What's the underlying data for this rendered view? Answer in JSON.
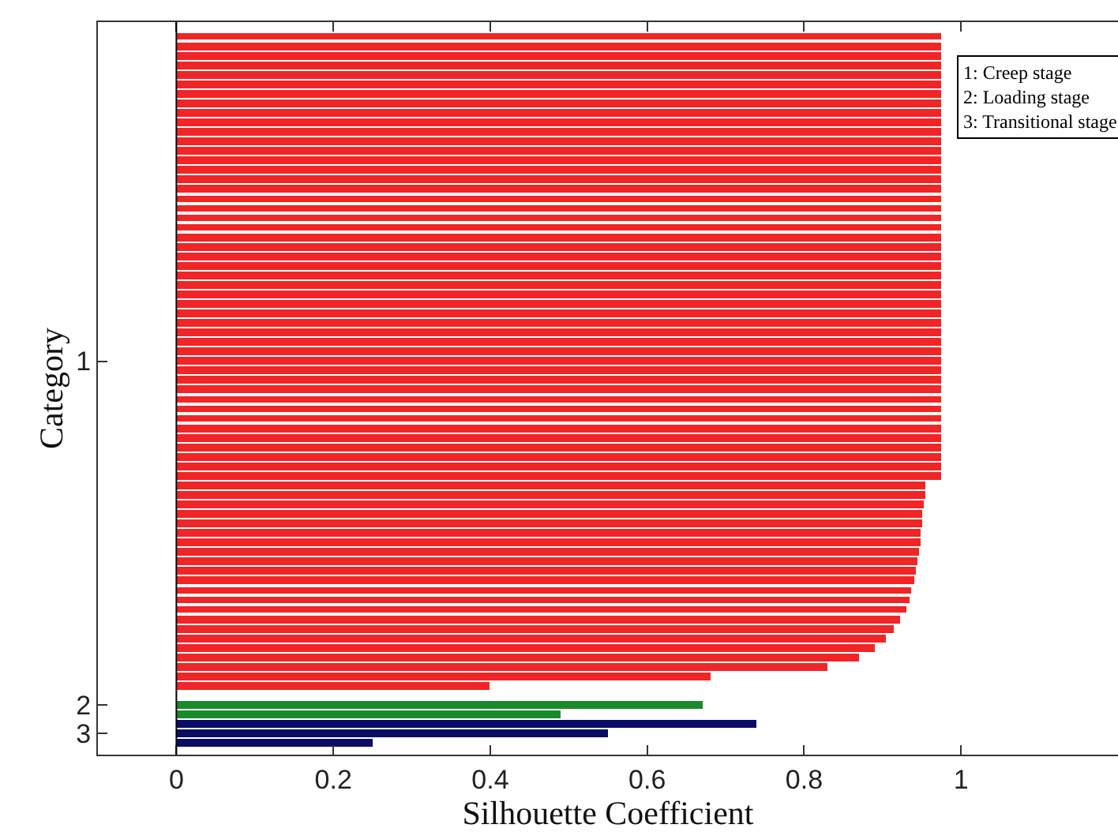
{
  "chart_data": {
    "type": "bar",
    "orientation": "horizontal",
    "xlabel": "Silhouette Coefficient",
    "ylabel": "Category",
    "categories": [
      null,
      null,
      null,
      null,
      null,
      null,
      null,
      null,
      null,
      null,
      null,
      null,
      null,
      null,
      null,
      null,
      null,
      null,
      null,
      null,
      null,
      null,
      null,
      null,
      null,
      null,
      null,
      null,
      null,
      null,
      null,
      null,
      null,
      null,
      "1",
      null,
      null,
      null,
      null,
      null,
      null,
      null,
      null,
      null,
      null,
      null,
      null,
      null,
      null,
      null,
      null,
      null,
      null,
      null,
      null,
      null,
      null,
      null,
      null,
      null,
      null,
      null,
      null,
      null,
      null,
      null,
      null,
      null,
      null,
      null,
      "2",
      null,
      null,
      "3",
      null
    ],
    "series": [
      {
        "color": "#f12525",
        "values": [
          0.975,
          0.975,
          0.975,
          0.975,
          0.975,
          0.975,
          0.975,
          0.975,
          0.975,
          0.975,
          0.975,
          0.975,
          0.975,
          0.975,
          0.975,
          0.975,
          0.975,
          0.975,
          0.975,
          0.975,
          0.975,
          0.975,
          0.975,
          0.975,
          0.975,
          0.975,
          0.975,
          0.975,
          0.975,
          0.975,
          0.975,
          0.975,
          0.975,
          0.975,
          0.975,
          0.975,
          0.975,
          0.975,
          0.975,
          0.975,
          0.975,
          0.975,
          0.975,
          0.975,
          0.975,
          0.975,
          0.975,
          0.955,
          0.954,
          0.952,
          0.951,
          0.95,
          0.949,
          0.948,
          0.947,
          0.945,
          0.942,
          0.94,
          0.937,
          0.935,
          0.93,
          0.922,
          0.915,
          0.905,
          0.89,
          0.87,
          0.83,
          0.68,
          0.4,
          null,
          null,
          null,
          null,
          null,
          null
        ]
      },
      {
        "color": "#1a8a2a",
        "values": [
          null,
          null,
          null,
          null,
          null,
          null,
          null,
          null,
          null,
          null,
          null,
          null,
          null,
          null,
          null,
          null,
          null,
          null,
          null,
          null,
          null,
          null,
          null,
          null,
          null,
          null,
          null,
          null,
          null,
          null,
          null,
          null,
          null,
          null,
          null,
          null,
          null,
          null,
          null,
          null,
          null,
          null,
          null,
          null,
          null,
          null,
          null,
          null,
          null,
          null,
          null,
          null,
          null,
          null,
          null,
          null,
          null,
          null,
          null,
          null,
          null,
          null,
          null,
          null,
          null,
          null,
          null,
          null,
          null,
          null,
          0.67,
          0.49,
          null,
          null,
          null
        ]
      },
      {
        "color": "#0b0c66",
        "values": [
          null,
          null,
          null,
          null,
          null,
          null,
          null,
          null,
          null,
          null,
          null,
          null,
          null,
          null,
          null,
          null,
          null,
          null,
          null,
          null,
          null,
          null,
          null,
          null,
          null,
          null,
          null,
          null,
          null,
          null,
          null,
          null,
          null,
          null,
          null,
          null,
          null,
          null,
          null,
          null,
          null,
          null,
          null,
          null,
          null,
          null,
          null,
          null,
          null,
          null,
          null,
          null,
          null,
          null,
          null,
          null,
          null,
          null,
          null,
          null,
          null,
          null,
          null,
          null,
          null,
          null,
          null,
          null,
          null,
          null,
          null,
          null,
          0.74,
          0.55,
          0.25
        ]
      }
    ],
    "xlim": [
      -0.1,
      1.2
    ],
    "xticks": [
      0,
      0.2,
      0.4,
      0.6,
      0.8,
      1
    ],
    "ref_lines": [
      {
        "axis": "x",
        "value": 0,
        "color": "#000000"
      }
    ],
    "annotations": [
      "1: Creep stage",
      "2: Loading stage",
      "3: Transitional stage"
    ]
  }
}
